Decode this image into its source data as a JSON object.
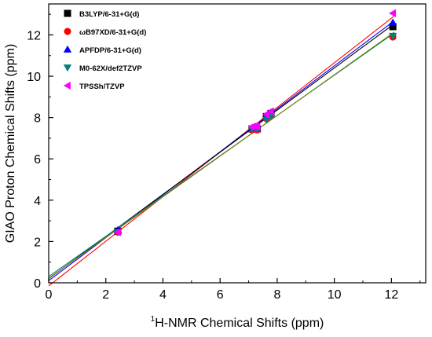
{
  "chart_data": {
    "type": "scatter",
    "xlabel_sup": "1",
    "xlabel_main": "H-NMR Chemical Shifts (ppm)",
    "ylabel": "GIAO Proton Chemical Shifts (ppm)",
    "xlim": [
      0,
      13.2
    ],
    "ylim": [
      0,
      13.5
    ],
    "x_ticks": [
      0,
      2,
      4,
      6,
      8,
      10,
      12
    ],
    "y_ticks": [
      0,
      2,
      4,
      6,
      8,
      10,
      12
    ],
    "grid": false,
    "legend_position": "top-left",
    "series": [
      {
        "name": "B3LYP/6-31+G(d)",
        "color": "#000000",
        "marker": "square",
        "x": [
          2.42,
          7.12,
          7.25,
          7.3,
          7.62,
          7.78,
          12.05
        ],
        "y": [
          2.5,
          7.45,
          7.5,
          7.45,
          8.05,
          8.2,
          12.4
        ],
        "fit": [
          0.2,
          1.02
        ]
      },
      {
        "name": "ωB97XD/6-31+G(d)",
        "color": "#ff0000",
        "marker": "circle",
        "x": [
          2.42,
          7.12,
          7.25,
          7.3,
          7.62,
          7.78,
          12.05
        ],
        "y": [
          2.45,
          7.4,
          7.45,
          7.4,
          7.95,
          8.1,
          11.9
        ],
        "fit": [
          0.22,
          0.985
        ]
      },
      {
        "name": "APFDP/6-31+G(d)",
        "color": "#0000ff",
        "marker": "triangle-up",
        "x": [
          2.42,
          7.12,
          7.25,
          7.3,
          7.62,
          7.78,
          12.05
        ],
        "y": [
          2.55,
          7.5,
          7.55,
          7.5,
          8.1,
          8.25,
          12.6
        ],
        "fit": [
          0.1,
          1.04
        ]
      },
      {
        "name": "M0-62X/def2TZVP",
        "color": "#008080",
        "marker": "triangle-down",
        "x": [
          2.42,
          7.12,
          7.25,
          7.3,
          7.62,
          7.78,
          12.05
        ],
        "y": [
          2.45,
          7.45,
          7.5,
          7.45,
          7.9,
          8.05,
          11.95
        ],
        "fit": [
          0.3,
          0.975
        ]
      },
      {
        "name": "TPSSh/TZVP",
        "color": "#ff00ff",
        "marker": "triangle-left",
        "x": [
          2.42,
          7.12,
          7.25,
          7.3,
          7.62,
          7.78,
          12.05
        ],
        "y": [
          2.45,
          7.55,
          7.6,
          7.55,
          8.15,
          8.3,
          13.05
        ],
        "fit": [
          -0.15,
          1.08
        ]
      }
    ],
    "fit_lines": [
      {
        "color": "#ff0000",
        "intercept": -0.15,
        "slope": 1.08
      },
      {
        "color": "#0000ff",
        "intercept": 0.1,
        "slope": 1.04
      },
      {
        "color": "#000000",
        "intercept": 0.2,
        "slope": 1.02
      },
      {
        "color": "#008080",
        "intercept": 0.3,
        "slope": 0.975
      },
      {
        "color": "#808000",
        "intercept": 0.22,
        "slope": 0.985
      }
    ]
  }
}
